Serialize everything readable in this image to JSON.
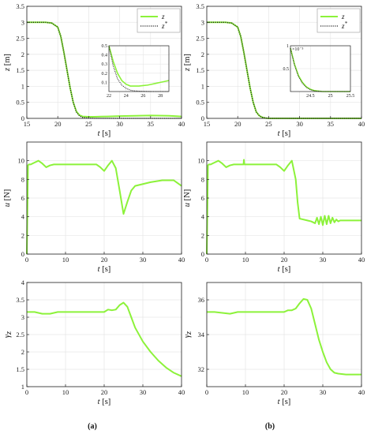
{
  "figure": {
    "captions": [
      "(a)",
      "(b)"
    ],
    "colors": {
      "signal": "#8cf23a",
      "reference": "#222222",
      "grid": "#e6e6e6",
      "frame": "#222222"
    }
  },
  "chart_data": [
    {
      "id": "a1",
      "type": "line",
      "grid": true,
      "legend": "top-right",
      "title": "",
      "xlabel": "t",
      "xunit": "[s]",
      "ylabel": "z",
      "yunit": "[m]",
      "xlim": [
        15,
        40
      ],
      "ylim": [
        0,
        3.5
      ],
      "xticks": [
        "15",
        "20",
        "25",
        "30",
        "35",
        "40"
      ],
      "yticks": [
        "0",
        "0.5",
        "1",
        "1.5",
        "2",
        "2.5",
        "3",
        "3.5"
      ],
      "series": [
        {
          "name": "z",
          "style": "solid",
          "x": [
            15,
            18,
            19,
            20,
            20.5,
            21,
            21.5,
            22,
            22.5,
            23,
            23.5,
            24,
            25,
            26,
            28,
            30,
            35,
            38,
            40
          ],
          "y": [
            3.0,
            3.0,
            2.98,
            2.85,
            2.55,
            2.05,
            1.5,
            0.95,
            0.5,
            0.22,
            0.1,
            0.06,
            0.05,
            0.05,
            0.06,
            0.07,
            0.09,
            0.08,
            0.06
          ]
        },
        {
          "name": "z*",
          "style": "dotted",
          "x": [
            15,
            18,
            19,
            20,
            20.5,
            21,
            21.5,
            22,
            22.5,
            23,
            23.5,
            24,
            25,
            26,
            28,
            30,
            35,
            40
          ],
          "y": [
            3.0,
            3.0,
            2.98,
            2.85,
            2.55,
            2.05,
            1.5,
            0.95,
            0.5,
            0.2,
            0.08,
            0.03,
            0.01,
            0.0,
            0.0,
            0.0,
            0.0,
            0.0
          ]
        }
      ],
      "inset": {
        "xlim": [
          22,
          29
        ],
        "ylim": [
          0,
          0.5
        ],
        "xticks": [
          "22",
          "24",
          "26",
          "28"
        ],
        "yticks": [
          "0.1",
          "0.2",
          "0.3",
          "0.4",
          "0.5"
        ],
        "yscale_label": "",
        "series": [
          {
            "name": "z",
            "x": [
              22,
              22.5,
              23,
              23.5,
              24,
              24.5,
              25,
              25.5,
              26,
              26.5,
              27,
              27.5,
              28,
              28.5,
              29
            ],
            "y": [
              0.5,
              0.33,
              0.2,
              0.12,
              0.08,
              0.06,
              0.06,
              0.06,
              0.065,
              0.07,
              0.08,
              0.09,
              0.1,
              0.11,
              0.12
            ]
          },
          {
            "name": "z*",
            "x": [
              22,
              22.5,
              23,
              23.5,
              24,
              24.5,
              25,
              26,
              27,
              28,
              29
            ],
            "y": [
              0.5,
              0.28,
              0.14,
              0.07,
              0.035,
              0.015,
              0.007,
              0.002,
              0,
              0,
              0
            ]
          }
        ]
      }
    },
    {
      "id": "b1",
      "type": "line",
      "grid": true,
      "legend": "top-right",
      "title": "",
      "xlabel": "t",
      "xunit": "[s]",
      "ylabel": "z",
      "yunit": "[m]",
      "xlim": [
        15,
        40
      ],
      "ylim": [
        0,
        3.5
      ],
      "xticks": [
        "15",
        "20",
        "25",
        "30",
        "35",
        "40"
      ],
      "yticks": [
        "0",
        "0.5",
        "1",
        "1.5",
        "2",
        "2.5",
        "3",
        "3.5"
      ],
      "series": [
        {
          "name": "z",
          "style": "solid",
          "x": [
            15,
            18,
            19,
            20,
            20.5,
            21,
            21.5,
            22,
            22.5,
            23,
            23.5,
            24,
            24.5,
            25,
            26,
            28,
            30,
            35,
            40
          ],
          "y": [
            3.0,
            3.0,
            2.98,
            2.85,
            2.55,
            2.05,
            1.5,
            0.95,
            0.5,
            0.2,
            0.08,
            0.03,
            0.01,
            0.0,
            0.0,
            0.0,
            0.0,
            0.0,
            0.0
          ]
        },
        {
          "name": "z*",
          "style": "dotted",
          "x": [
            15,
            18,
            19,
            20,
            20.5,
            21,
            21.5,
            22,
            22.5,
            23,
            23.5,
            24,
            24.5,
            25,
            26,
            28,
            30,
            35,
            40
          ],
          "y": [
            3.0,
            3.0,
            2.98,
            2.85,
            2.55,
            2.05,
            1.5,
            0.95,
            0.5,
            0.2,
            0.08,
            0.03,
            0.01,
            0.0,
            0.0,
            0.0,
            0.0,
            0.0,
            0.0
          ]
        }
      ],
      "inset": {
        "xlim": [
          24,
          25.5
        ],
        "ylim": [
          0,
          1
        ],
        "xticks": [
          "24.5",
          "25",
          "25.5"
        ],
        "yticks": [
          "0.5",
          "1"
        ],
        "yscale_label": "×10⁻³",
        "series": [
          {
            "name": "z",
            "x": [
              24,
              24.1,
              24.2,
              24.3,
              24.4,
              24.5,
              24.6,
              24.7,
              24.8,
              25,
              25.2,
              25.5
            ],
            "y": [
              0.95,
              0.6,
              0.35,
              0.2,
              0.1,
              0.05,
              0.02,
              0.01,
              0.0,
              0.0,
              0.0,
              0.0
            ]
          },
          {
            "name": "z*",
            "x": [
              24,
              24.1,
              24.2,
              24.3,
              24.4,
              24.5,
              24.6,
              24.7,
              24.8,
              25,
              25.2,
              25.5
            ],
            "y": [
              0.95,
              0.58,
              0.33,
              0.18,
              0.09,
              0.04,
              0.015,
              0.005,
              0.0,
              0.0,
              0.0,
              0.0
            ]
          }
        ]
      }
    },
    {
      "id": "a2",
      "type": "line",
      "grid": true,
      "title": "",
      "xlabel": "t",
      "xunit": "[s]",
      "ylabel": "u",
      "yunit": "[N]",
      "xlim": [
        0,
        40
      ],
      "ylim": [
        0,
        12
      ],
      "xticks": [
        "0",
        "10",
        "20",
        "30",
        "40"
      ],
      "yticks": [
        "0",
        "2",
        "4",
        "6",
        "8",
        "10"
      ],
      "series": [
        {
          "name": "u",
          "style": "solid",
          "x": [
            0,
            0.3,
            0.5,
            1,
            2,
            3,
            4,
            5,
            6,
            7,
            8,
            10,
            14,
            17,
            18,
            19,
            20,
            21,
            22,
            23,
            24,
            25,
            26,
            27,
            28,
            30,
            32,
            35,
            38,
            40
          ],
          "y": [
            0,
            9.5,
            9.6,
            9.6,
            9.8,
            10.0,
            9.7,
            9.3,
            9.5,
            9.6,
            9.6,
            9.6,
            9.6,
            9.6,
            9.6,
            9.3,
            8.9,
            9.5,
            10.0,
            9.2,
            6.8,
            4.3,
            5.6,
            6.8,
            7.3,
            7.5,
            7.7,
            7.9,
            7.9,
            7.3
          ]
        }
      ]
    },
    {
      "id": "b2",
      "type": "line",
      "grid": true,
      "title": "",
      "xlabel": "t",
      "xunit": "[s]",
      "ylabel": "u",
      "yunit": "[N]",
      "xlim": [
        0,
        40
      ],
      "ylim": [
        0,
        12
      ],
      "xticks": [
        "0",
        "10",
        "20",
        "30",
        "40"
      ],
      "yticks": [
        "0",
        "2",
        "4",
        "6",
        "8",
        "10"
      ],
      "series": [
        {
          "name": "u",
          "style": "solid",
          "x": [
            0,
            0.3,
            0.5,
            1,
            2,
            3,
            4,
            5,
            6,
            7,
            8,
            9,
            9.5,
            9.6,
            9.7,
            10,
            12,
            15,
            18,
            19,
            20,
            21,
            22,
            23,
            23.5,
            24,
            26,
            27,
            28,
            28.5,
            29,
            29.5,
            30,
            30.5,
            31,
            31.5,
            32,
            32.5,
            33,
            33.5,
            34,
            34.5,
            35,
            36,
            38,
            40
          ],
          "y": [
            0,
            9.5,
            9.6,
            9.6,
            9.8,
            10.0,
            9.7,
            9.3,
            9.5,
            9.6,
            9.6,
            9.6,
            9.6,
            10.1,
            9.6,
            9.6,
            9.6,
            9.6,
            9.6,
            9.3,
            8.9,
            9.5,
            10.0,
            8.0,
            5.5,
            3.8,
            3.6,
            3.5,
            3.3,
            3.9,
            3.2,
            4.0,
            3.1,
            4.1,
            3.2,
            4.1,
            3.3,
            3.9,
            3.4,
            3.7,
            3.5,
            3.6,
            3.6,
            3.6,
            3.6,
            3.6
          ]
        }
      ]
    },
    {
      "id": "a3",
      "type": "line",
      "grid": true,
      "title": "",
      "xlabel": "t",
      "xunit": "[s]",
      "ylabel": "γz",
      "yunit": "",
      "xlim": [
        0,
        40
      ],
      "ylim": [
        1,
        4
      ],
      "xticks": [
        "0",
        "10",
        "20",
        "30",
        "40"
      ],
      "yticks": [
        "1",
        "1.5",
        "2",
        "2.5",
        "3",
        "3.5",
        "4"
      ],
      "series": [
        {
          "name": "γz",
          "style": "solid",
          "x": [
            0,
            2,
            4,
            6,
            8,
            10,
            14,
            18,
            20,
            21,
            22,
            23,
            24,
            25,
            26,
            27,
            28,
            30,
            32,
            34,
            36,
            38,
            40
          ],
          "y": [
            3.15,
            3.15,
            3.1,
            3.1,
            3.15,
            3.15,
            3.15,
            3.15,
            3.15,
            3.22,
            3.2,
            3.22,
            3.35,
            3.42,
            3.3,
            3.0,
            2.7,
            2.3,
            2.0,
            1.75,
            1.55,
            1.4,
            1.3
          ]
        }
      ]
    },
    {
      "id": "b3",
      "type": "line",
      "grid": true,
      "title": "",
      "xlabel": "t",
      "xunit": "[s]",
      "ylabel": "γz",
      "yunit": "",
      "xlim": [
        0,
        40
      ],
      "ylim": [
        31,
        37
      ],
      "xticks": [
        "0",
        "10",
        "20",
        "30",
        "40"
      ],
      "yticks": [
        "32",
        "34",
        "36"
      ],
      "series": [
        {
          "name": "γz",
          "style": "solid",
          "x": [
            0,
            2,
            4,
            6,
            8,
            10,
            14,
            18,
            20,
            21,
            22,
            23,
            24,
            25,
            26,
            27,
            28,
            29,
            30,
            31,
            32,
            33,
            34,
            36,
            38,
            40
          ],
          "y": [
            35.3,
            35.3,
            35.25,
            35.2,
            35.3,
            35.3,
            35.3,
            35.3,
            35.3,
            35.4,
            35.4,
            35.5,
            35.8,
            36.05,
            36.0,
            35.5,
            34.6,
            33.7,
            33.0,
            32.4,
            32.0,
            31.8,
            31.75,
            31.7,
            31.7,
            31.7
          ]
        }
      ]
    }
  ]
}
